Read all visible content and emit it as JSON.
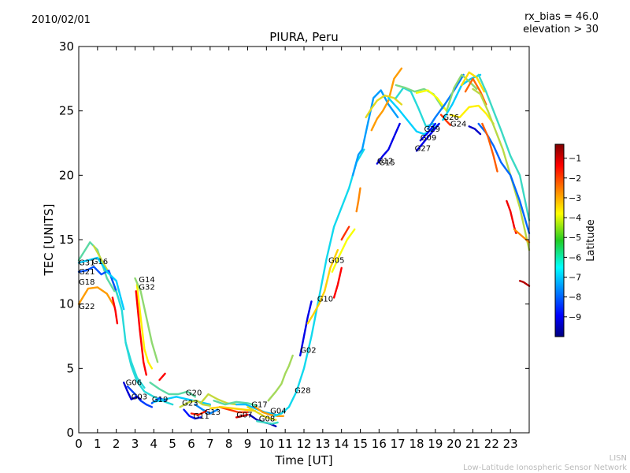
{
  "header": {
    "date": "2010/02/01",
    "rx_bias": "rx_bias = 46.0",
    "elevation": "elevation > 30"
  },
  "footer": {
    "org_short": "LISN",
    "org_long": "Low-Latitude Ionospheric Sensor Network"
  },
  "chart_data": {
    "type": "scatter",
    "title": "PIURA, Peru",
    "xlabel": "Time [UT]",
    "ylabel": "TEC [UNITS]",
    "xlim": [
      0,
      24
    ],
    "ylim": [
      0,
      30
    ],
    "xticks": [
      0,
      1,
      2,
      3,
      4,
      5,
      6,
      7,
      8,
      9,
      10,
      11,
      12,
      13,
      14,
      15,
      16,
      17,
      18,
      19,
      20,
      21,
      22,
      23
    ],
    "yticks": [
      0,
      5,
      10,
      15,
      20,
      25,
      30
    ],
    "colorbar": {
      "label": "Latitude",
      "range": [
        -10,
        -0.3
      ],
      "ticks": [
        -9,
        -8,
        -7,
        -6,
        -5,
        -4,
        -3,
        -2,
        -1
      ]
    },
    "labels": [
      {
        "text": "G31",
        "x": 0.0,
        "y": 13.0
      },
      {
        "text": "G16",
        "x": 0.7,
        "y": 13.1
      },
      {
        "text": "G21",
        "x": 0.0,
        "y": 12.3
      },
      {
        "text": "G18",
        "x": 0.0,
        "y": 11.5
      },
      {
        "text": "G22",
        "x": 0.0,
        "y": 9.6
      },
      {
        "text": "G14",
        "x": 3.2,
        "y": 11.7
      },
      {
        "text": "G32",
        "x": 3.2,
        "y": 11.1
      },
      {
        "text": "G06",
        "x": 2.5,
        "y": 3.7
      },
      {
        "text": "G03",
        "x": 2.8,
        "y": 2.6
      },
      {
        "text": "G19",
        "x": 3.9,
        "y": 2.4
      },
      {
        "text": "G20",
        "x": 5.7,
        "y": 2.9
      },
      {
        "text": "G23",
        "x": 5.5,
        "y": 2.1
      },
      {
        "text": "G11",
        "x": 6.1,
        "y": 1.1
      },
      {
        "text": "G13",
        "x": 6.7,
        "y": 1.4
      },
      {
        "text": "G07",
        "x": 8.4,
        "y": 1.2
      },
      {
        "text": "G17",
        "x": 9.2,
        "y": 2.0
      },
      {
        "text": "G08",
        "x": 9.6,
        "y": 0.9
      },
      {
        "text": "G04",
        "x": 10.2,
        "y": 1.5
      },
      {
        "text": "G28",
        "x": 11.5,
        "y": 3.1
      },
      {
        "text": "G02",
        "x": 11.8,
        "y": 6.2
      },
      {
        "text": "G10",
        "x": 12.7,
        "y": 10.2
      },
      {
        "text": "G05",
        "x": 13.3,
        "y": 13.2
      },
      {
        "text": "G12",
        "x": 15.9,
        "y": 20.9
      },
      {
        "text": "G15",
        "x": 16.0,
        "y": 20.8
      },
      {
        "text": "G29",
        "x": 18.4,
        "y": 23.4
      },
      {
        "text": "G09",
        "x": 18.2,
        "y": 22.7
      },
      {
        "text": "G27",
        "x": 17.9,
        "y": 21.9
      },
      {
        "text": "G26",
        "x": 19.4,
        "y": 24.3
      },
      {
        "text": "G24",
        "x": 19.8,
        "y": 23.8
      }
    ],
    "series": [
      {
        "lat": -5.5,
        "x": [
          0,
          0.6,
          1.0,
          1.5,
          1.9
        ],
        "y": [
          13.4,
          14.8,
          14.2,
          12.0,
          11.0
        ]
      },
      {
        "lat": -4.5,
        "x": [
          0.8,
          1.0,
          1.3,
          1.7,
          2.1
        ],
        "y": [
          14.5,
          14.0,
          13.2,
          12.2,
          10.5
        ]
      },
      {
        "lat": -8.0,
        "x": [
          0,
          0.4,
          0.8,
          1.2,
          1.6,
          2.0
        ],
        "y": [
          12.5,
          12.6,
          12.9,
          12.3,
          12.6,
          11.0
        ]
      },
      {
        "lat": -6.5,
        "x": [
          0,
          0.5,
          1.0,
          1.5,
          2.0,
          2.4
        ],
        "y": [
          13.2,
          13.4,
          13.6,
          12.5,
          11.8,
          9.6
        ]
      },
      {
        "lat": -3.0,
        "x": [
          0,
          0.5,
          1.0,
          1.5,
          1.9
        ],
        "y": [
          10.0,
          11.2,
          11.3,
          10.8,
          9.8
        ]
      },
      {
        "lat": -1.5,
        "x": [
          1.8,
          1.95,
          2.05
        ],
        "y": [
          10.5,
          9.5,
          8.5
        ]
      },
      {
        "lat": -6.0,
        "x": [
          2.0,
          2.3,
          2.5,
          2.8,
          3.1,
          3.5
        ],
        "y": [
          11.0,
          9.5,
          7.0,
          5.5,
          4.3,
          3.5
        ]
      },
      {
        "lat": -8.2,
        "x": [
          2.6,
          3.0,
          3.3,
          3.6,
          3.9
        ],
        "y": [
          3.6,
          3.0,
          2.5,
          2.2,
          2.0
        ]
      },
      {
        "lat": -9.2,
        "x": [
          2.4,
          2.6,
          2.8,
          3.1,
          3.3
        ],
        "y": [
          3.9,
          3.2,
          2.6,
          2.8,
          2.6
        ]
      },
      {
        "lat": -6.0,
        "x": [
          2.5,
          2.8,
          3.1,
          3.5,
          4.0,
          4.6,
          5.0
        ],
        "y": [
          7.0,
          5.2,
          4.0,
          3.2,
          2.8,
          2.4,
          2.2
        ]
      },
      {
        "lat": -3.8,
        "x": [
          3.1,
          3.3,
          3.5,
          3.7,
          3.9
        ],
        "y": [
          11.5,
          9.0,
          6.5,
          5.5,
          5.0
        ]
      },
      {
        "lat": -1.5,
        "x": [
          3.05,
          3.25,
          3.45,
          3.6
        ],
        "y": [
          11.0,
          8.0,
          5.5,
          4.5
        ]
      },
      {
        "lat": -5.0,
        "x": [
          3.0,
          3.3,
          3.6,
          3.9,
          4.2
        ],
        "y": [
          12.0,
          11.0,
          9.0,
          7.0,
          5.5
        ]
      },
      {
        "lat": -1.5,
        "x": [
          4.3,
          4.6
        ],
        "y": [
          4.1,
          4.6
        ]
      },
      {
        "lat": -5.5,
        "x": [
          3.8,
          4.3,
          4.8,
          5.3,
          5.8,
          6.2
        ],
        "y": [
          3.9,
          3.4,
          3.0,
          3.0,
          3.2,
          2.8
        ]
      },
      {
        "lat": -8.0,
        "x": [
          3.9,
          4.3,
          4.6
        ],
        "y": [
          2.3,
          2.7,
          2.5
        ]
      },
      {
        "lat": -6.5,
        "x": [
          4.0,
          4.6,
          5.2,
          5.8,
          6.4,
          7.0
        ],
        "y": [
          2.4,
          2.6,
          2.8,
          2.6,
          2.4,
          2.2
        ]
      },
      {
        "lat": -4.5,
        "x": [
          5.4,
          5.9,
          6.3,
          6.6,
          7.0
        ],
        "y": [
          2.0,
          2.4,
          2.5,
          2.2,
          2.1
        ]
      },
      {
        "lat": -8.6,
        "x": [
          5.6,
          5.9,
          6.2,
          6.5
        ],
        "y": [
          1.8,
          1.3,
          1.1,
          1.2
        ]
      },
      {
        "lat": -7.5,
        "x": [
          6.2,
          6.6,
          7.0,
          7.4
        ],
        "y": [
          2.2,
          1.8,
          1.5,
          1.8
        ]
      },
      {
        "lat": -1.8,
        "x": [
          6.0,
          6.4,
          6.8
        ],
        "y": [
          1.5,
          1.4,
          1.7
        ]
      },
      {
        "lat": -4.5,
        "x": [
          6.5,
          6.9,
          7.4,
          7.9,
          8.4
        ],
        "y": [
          2.3,
          3.0,
          2.6,
          2.3,
          2.2
        ]
      },
      {
        "lat": -5.5,
        "x": [
          7.2,
          7.8,
          8.4,
          9.0,
          9.5
        ],
        "y": [
          2.5,
          2.2,
          2.4,
          2.3,
          2.1
        ]
      },
      {
        "lat": -2.0,
        "x": [
          7.5,
          8.0,
          8.5,
          9.0
        ],
        "y": [
          2.0,
          1.8,
          1.6,
          1.6
        ]
      },
      {
        "lat": -3.5,
        "x": [
          7.0,
          7.6,
          8.2,
          8.8,
          9.4
        ],
        "y": [
          1.9,
          2.0,
          1.9,
          1.8,
          1.7
        ]
      },
      {
        "lat": -1.2,
        "x": [
          8.4,
          8.7,
          9.0
        ],
        "y": [
          1.2,
          1.3,
          1.4
        ]
      },
      {
        "lat": -7.0,
        "x": [
          8.4,
          8.9,
          9.4,
          9.9,
          10.5
        ],
        "y": [
          2.2,
          2.2,
          1.9,
          1.6,
          1.4
        ]
      },
      {
        "lat": -9.5,
        "x": [
          9.1,
          9.5,
          9.9,
          10.2,
          10.5
        ],
        "y": [
          1.4,
          1.0,
          0.8,
          0.7,
          0.5
        ]
      },
      {
        "lat": -4.2,
        "x": [
          9.0,
          9.5,
          10.0,
          10.5
        ],
        "y": [
          2.0,
          1.6,
          1.2,
          1.0
        ]
      },
      {
        "lat": -3.0,
        "x": [
          9.4,
          9.8,
          10.2,
          10.6,
          10.9
        ],
        "y": [
          2.0,
          1.6,
          1.4,
          1.3,
          1.3
        ]
      },
      {
        "lat": -5.8,
        "x": [
          9.5,
          9.9,
          10.3,
          10.6
        ],
        "y": [
          0.9,
          0.8,
          0.7,
          0.8
        ]
      },
      {
        "lat": -4.8,
        "x": [
          10.1,
          10.5,
          10.8,
          11.0,
          11.2,
          11.4
        ],
        "y": [
          2.5,
          3.2,
          3.8,
          4.6,
          5.2,
          6.0
        ]
      },
      {
        "lat": -6.2,
        "x": [
          10.4,
          10.8,
          11.2,
          11.6,
          12.0,
          12.4,
          12.8,
          13.2,
          13.6,
          14.0,
          14.4,
          14.8,
          15.2
        ],
        "y": [
          1.3,
          1.5,
          2.0,
          3.2,
          5.0,
          7.5,
          10.5,
          13.5,
          16.0,
          17.5,
          19.0,
          21.0,
          22.0
        ]
      },
      {
        "lat": -9.0,
        "x": [
          11.8,
          12.0,
          12.2,
          12.4
        ],
        "y": [
          6.0,
          7.5,
          9.0,
          10.2
        ]
      },
      {
        "lat": -3.5,
        "x": [
          12.2,
          12.5,
          12.8,
          13.1,
          13.4,
          13.8
        ],
        "y": [
          8.5,
          9.2,
          10.0,
          11.0,
          12.8,
          14.2
        ]
      },
      {
        "lat": -1.5,
        "x": [
          13.6,
          13.8,
          14.0
        ],
        "y": [
          10.5,
          11.5,
          12.8
        ]
      },
      {
        "lat": -2.0,
        "x": [
          14.0,
          14.2,
          14.4
        ],
        "y": [
          15.0,
          15.5,
          16.0
        ]
      },
      {
        "lat": -4.0,
        "x": [
          13.5,
          13.9,
          14.3,
          14.7
        ],
        "y": [
          12.5,
          13.8,
          15.0,
          15.8
        ]
      },
      {
        "lat": -2.8,
        "x": [
          14.8,
          14.9,
          15.0
        ],
        "y": [
          17.2,
          18.0,
          19.0
        ]
      },
      {
        "lat": -7.3,
        "x": [
          14.6,
          14.9,
          15.1,
          15.4,
          15.7,
          16.1,
          16.5,
          17.0
        ],
        "y": [
          20.0,
          21.6,
          22.0,
          24.0,
          26.0,
          26.6,
          25.5,
          24.5
        ]
      },
      {
        "lat": -3.0,
        "x": [
          15.6,
          15.9,
          16.2,
          16.5,
          16.8,
          17.2
        ],
        "y": [
          23.5,
          24.4,
          25.0,
          25.8,
          27.5,
          28.3
        ]
      },
      {
        "lat": -4.2,
        "x": [
          15.3,
          15.6,
          15.9,
          16.3,
          16.8,
          17.2
        ],
        "y": [
          24.5,
          25.2,
          25.8,
          26.2,
          26.0,
          25.5
        ]
      },
      {
        "lat": -9.0,
        "x": [
          15.9,
          16.2,
          16.5,
          16.8,
          17.1
        ],
        "y": [
          20.9,
          21.5,
          22.0,
          23.0,
          24.0
        ]
      },
      {
        "lat": -6.0,
        "x": [
          16.9,
          17.3,
          17.7,
          18.1,
          18.5,
          18.9
        ],
        "y": [
          26.0,
          26.8,
          26.5,
          25.2,
          23.8,
          24.0
        ]
      },
      {
        "lat": -5.2,
        "x": [
          16.9,
          17.4,
          17.9,
          18.4,
          18.9,
          19.4
        ],
        "y": [
          27.0,
          26.8,
          26.5,
          26.7,
          26.3,
          25.2
        ]
      },
      {
        "lat": -4.0,
        "x": [
          18.0,
          18.6,
          19.1,
          19.6
        ],
        "y": [
          26.4,
          26.6,
          26.0,
          25.0
        ]
      },
      {
        "lat": -6.8,
        "x": [
          16.5,
          17.0,
          17.5,
          18.0,
          18.4,
          18.8,
          19.2
        ],
        "y": [
          26.0,
          25.2,
          24.3,
          23.4,
          23.2,
          23.5,
          24.0
        ]
      },
      {
        "lat": -9.0,
        "x": [
          18.0,
          18.4,
          18.8,
          19.2
        ],
        "y": [
          21.9,
          22.6,
          23.3,
          24.0
        ]
      },
      {
        "lat": -8.8,
        "x": [
          18.2,
          18.6,
          19.0
        ],
        "y": [
          22.7,
          23.3,
          24.0
        ]
      },
      {
        "lat": -7.6,
        "x": [
          18.6,
          19.0,
          19.5,
          20.0,
          20.5
        ],
        "y": [
          23.6,
          24.5,
          25.5,
          26.6,
          27.8
        ]
      },
      {
        "lat": -2.0,
        "x": [
          19.3,
          19.6,
          19.8
        ],
        "y": [
          24.7,
          24.2,
          23.9
        ]
      },
      {
        "lat": -6.5,
        "x": [
          19.4,
          19.9,
          20.4,
          20.9,
          21.4
        ],
        "y": [
          24.3,
          25.5,
          27.0,
          27.5,
          27.8
        ]
      },
      {
        "lat": -5.0,
        "x": [
          19.6,
          20.0,
          20.4,
          20.8,
          21.2
        ],
        "y": [
          25.0,
          26.8,
          27.8,
          27.3,
          26.7
        ]
      },
      {
        "lat": -3.6,
        "x": [
          20.4,
          20.8,
          21.2,
          21.6
        ],
        "y": [
          27.0,
          28.0,
          27.6,
          26.5
        ]
      },
      {
        "lat": -2.5,
        "x": [
          20.6,
          21.0,
          21.4,
          21.7
        ],
        "y": [
          26.5,
          27.5,
          26.5,
          25.5
        ]
      },
      {
        "lat": -3.8,
        "x": [
          19.8,
          20.3,
          20.8,
          21.3,
          21.7,
          22.1
        ],
        "y": [
          24.7,
          24.5,
          25.3,
          25.4,
          24.8,
          24.0
        ]
      },
      {
        "lat": -4.6,
        "x": [
          21.0,
          21.4,
          21.8,
          22.2,
          22.6,
          23.0,
          23.5,
          24.0
        ],
        "y": [
          26.7,
          26.3,
          25.0,
          23.5,
          22.0,
          20.0,
          17.5,
          14.2
        ]
      },
      {
        "lat": -5.8,
        "x": [
          21.3,
          21.7,
          22.1,
          22.5,
          23.0,
          23.5,
          24.0
        ],
        "y": [
          27.8,
          26.5,
          25.0,
          23.5,
          21.5,
          20.0,
          16.5
        ]
      },
      {
        "lat": -7.8,
        "x": [
          21.3,
          21.7,
          22.1,
          22.5,
          23.0,
          23.5,
          24.0
        ],
        "y": [
          24.0,
          23.3,
          22.3,
          21.0,
          20.0,
          18.0,
          15.5
        ]
      },
      {
        "lat": -9.3,
        "x": [
          20.8,
          21.1,
          21.4
        ],
        "y": [
          23.8,
          23.6,
          23.2
        ]
      },
      {
        "lat": -2.4,
        "x": [
          21.5,
          21.8,
          22.1,
          22.3
        ],
        "y": [
          24.0,
          23.0,
          21.5,
          20.3
        ]
      },
      {
        "lat": -1.4,
        "x": [
          22.8,
          23.0,
          23.2,
          23.3
        ],
        "y": [
          18.0,
          17.2,
          16.0,
          15.5
        ]
      },
      {
        "lat": -2.8,
        "x": [
          23.2,
          23.6,
          24.0
        ],
        "y": [
          15.8,
          15.3,
          14.8
        ]
      },
      {
        "lat": -0.8,
        "x": [
          23.5,
          23.7,
          24.0
        ],
        "y": [
          11.8,
          11.7,
          11.4
        ]
      }
    ]
  }
}
